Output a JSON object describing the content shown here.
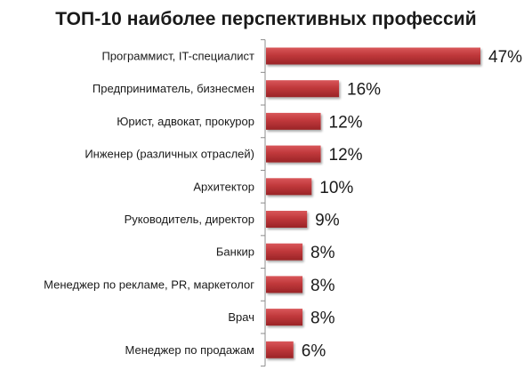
{
  "chart_data": {
    "type": "bar",
    "orientation": "horizontal",
    "title": "ТОП-10 наиболее перспективных профессий",
    "xlabel": "",
    "ylabel": "",
    "categories": [
      "Программист, IT-специалист",
      "Предприниматель, бизнесмен",
      "Юрист, адвокат, прокурор",
      "Инженер (различных отраслей)",
      "Архитектор",
      "Руководитель, директор",
      "Банкир",
      "Менеджер по рекламе, PR, маркетолог",
      "Врач",
      "Менеджер по продажам"
    ],
    "values": [
      47,
      16,
      12,
      12,
      10,
      9,
      8,
      8,
      8,
      6
    ],
    "value_labels": [
      "47%",
      "16%",
      "12%",
      "12%",
      "10%",
      "9%",
      "8%",
      "8%",
      "8%",
      "6%"
    ],
    "unit": "%",
    "xlim": [
      0,
      47
    ],
    "grid": false,
    "legend": "none",
    "bar_color": "#c0383b",
    "bar_color_light": "#d9575a",
    "bar_color_dark": "#9a2427"
  }
}
